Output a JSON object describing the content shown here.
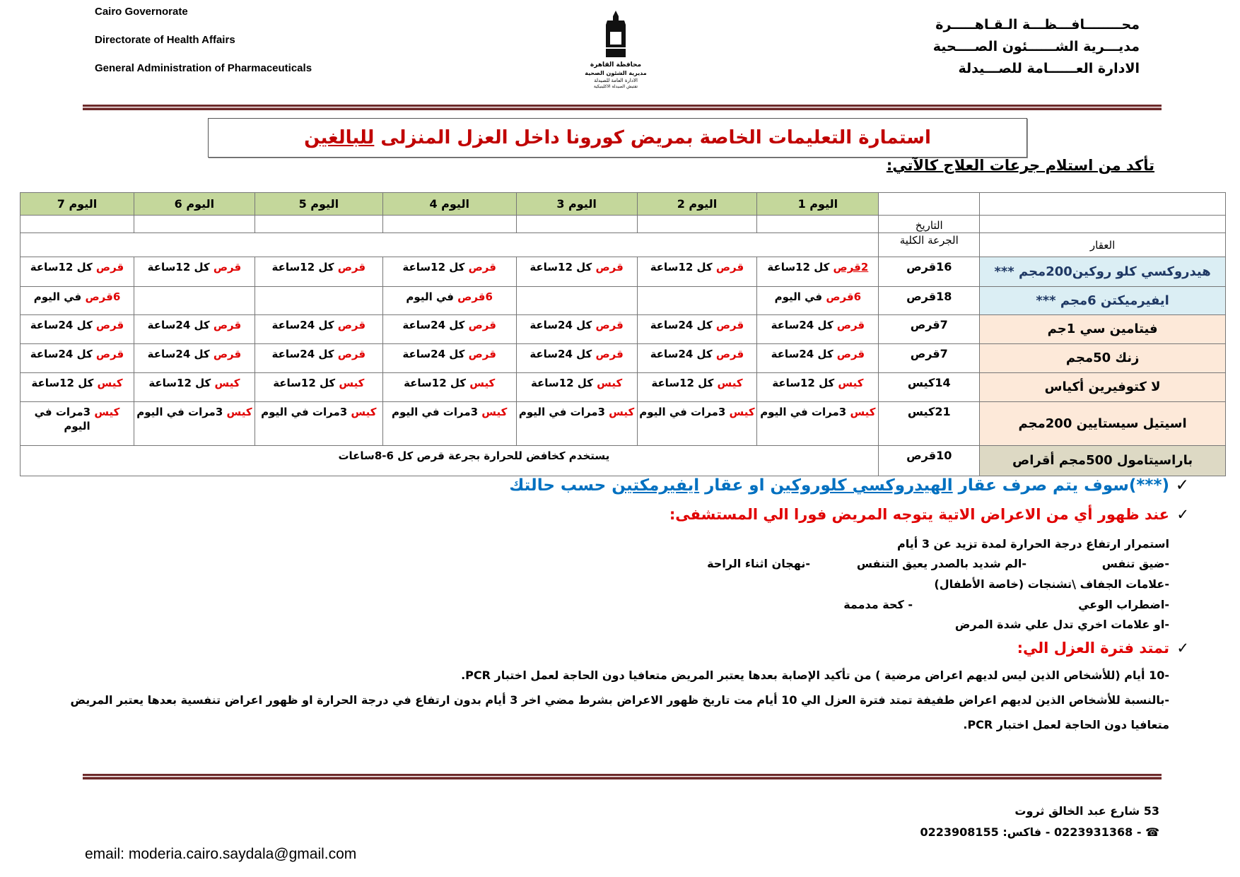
{
  "header": {
    "en": [
      "Cairo Governorate",
      "Directorate of Health Affairs",
      "General Administration of Pharmaceuticals"
    ],
    "ar": [
      "محــــــــافـــظـــة الـقـاهـــــرة",
      "مديـــرية الشــــــئون الصــــحية",
      "الادارة العــــــامة للصـــيدلة"
    ],
    "logo_text": [
      "محافظة القاهرة",
      "مديرية الشئون الصحية",
      "الادارة العامة للصيدلة",
      "تفتيش الصيدلة الاكلينيكية"
    ]
  },
  "title": {
    "main": "استمارة التعليمات الخاصة بمريض كورونا داخل العزل المنزلى ",
    "underlined": "للبالغين"
  },
  "subtitle": "تأكد من استلام جرعات العلاج كالآتي:",
  "table": {
    "days": [
      "اليوم 1",
      "اليوم 2",
      "اليوم 3",
      "اليوم 4",
      "اليوم 5",
      "اليوم 6",
      "اليوم 7"
    ],
    "date_label": "التاريخ",
    "drug_label": "العقار",
    "total_label": "الجرعة الكلية",
    "rows": [
      {
        "drug": "هيدروكسي كلو روكين200مجم ***",
        "total": "16قرص",
        "bg": "#dbeef4",
        "doses": [
          {
            "red": "2قرص",
            "black": " كل 12ساعة",
            "u": true
          },
          {
            "red": "قرص",
            "black": " كل 12ساعة"
          },
          {
            "red": "قرص",
            "black": " كل 12ساعة"
          },
          {
            "red": "قرص",
            "black": " كل 12ساعة"
          },
          {
            "red": "قرص",
            "black": " كل 12ساعة"
          },
          {
            "red": "قرص",
            "black": " كل 12ساعة"
          },
          {
            "red": "قرص",
            "black": " كل 12ساعة"
          }
        ]
      },
      {
        "drug": "ايفيرميكتن 6مجم  ***",
        "total": "18قرص",
        "bg": "#dbeef4",
        "doses": [
          {
            "red": "6قرص",
            "black": " في اليوم"
          },
          {
            "red": "",
            "black": ""
          },
          {
            "red": "",
            "black": ""
          },
          {
            "red": "6قرص",
            "black": " في اليوم"
          },
          {
            "red": "",
            "black": ""
          },
          {
            "red": "",
            "black": ""
          },
          {
            "red": "6قرص",
            "black": " في اليوم"
          }
        ]
      },
      {
        "drug": "فيتامين سي 1جم",
        "total": "7قرص",
        "bg": "#fde9d9",
        "doses": [
          {
            "red": "قرص",
            "black": " كل 24ساعة"
          },
          {
            "red": "قرص",
            "black": " كل 24ساعة"
          },
          {
            "red": "قرص",
            "black": " كل 24ساعة"
          },
          {
            "red": "قرص",
            "black": " كل 24ساعة"
          },
          {
            "red": "قرص",
            "black": " كل 24ساعة"
          },
          {
            "red": "قرص",
            "black": " كل 24ساعة"
          },
          {
            "red": "قرص",
            "black": " كل 24ساعة"
          }
        ]
      },
      {
        "drug": "زنك 50مجم",
        "total": "7قرص",
        "bg": "#fde9d9",
        "doses": [
          {
            "red": "قرص",
            "black": " كل 24ساعة"
          },
          {
            "red": "قرص",
            "black": " كل 24ساعة"
          },
          {
            "red": "قرص",
            "black": " كل 24ساعة"
          },
          {
            "red": "قرص",
            "black": " كل 24ساعة"
          },
          {
            "red": "قرص",
            "black": " كل 24ساعة"
          },
          {
            "red": "قرص",
            "black": " كل 24ساعة"
          },
          {
            "red": "قرص",
            "black": " كل 24ساعة"
          }
        ]
      },
      {
        "drug": "لا كتوفيرين أكياس",
        "total": "14كيس",
        "bg": "#fde9d9",
        "doses": [
          {
            "red": "كيس",
            "black": " كل 12ساعة"
          },
          {
            "red": "كيس",
            "black": " كل 12ساعة"
          },
          {
            "red": "كيس",
            "black": " كل 12ساعة"
          },
          {
            "red": "كيس",
            "black": " كل 12ساعة"
          },
          {
            "red": "كيس",
            "black": " كل 12ساعة"
          },
          {
            "red": "كيس",
            "black": " كل 12ساعة"
          },
          {
            "red": "كيس",
            "black": " كل 12ساعة"
          }
        ]
      },
      {
        "drug": "اسيتيل سيستايين 200مجم",
        "total": "21كيس",
        "bg": "#fde9d9",
        "doses": [
          {
            "red": "كيس",
            "black": " 3مرات في اليوم"
          },
          {
            "red": "كيس",
            "black": " 3مرات في اليوم"
          },
          {
            "red": "كيس",
            "black": " 3مرات في اليوم"
          },
          {
            "red": "كيس",
            "black": " 3مرات في اليوم"
          },
          {
            "red": "كيس",
            "black": " 3مرات في اليوم"
          },
          {
            "red": "كيس",
            "black": " 3مرات في اليوم"
          },
          {
            "red": "كيس",
            "black": " 3مرات في اليوم"
          }
        ]
      }
    ],
    "last_row": {
      "drug": "باراسيتامول 500مجم أقراص",
      "total": "10قرص",
      "note": "يستخدم كخافض للحرارة بجرعة قرص كل 6-8ساعات"
    }
  },
  "notes": {
    "line1": {
      "a": "(***)سوف يتم صرف عقار ",
      "b": "الهيدروكسي كلوروكين",
      "c": " او عقار ",
      "d": "ايفيرمكتين",
      "e": " حسب حالتك"
    },
    "line2": "عند ظهور أي من الاعراض الاتية يتوجه المريض فورا الي المستشفى:",
    "symptoms": {
      "s1": "استمرار ارتفاع درجة الحرارة لمدة تزيد عن 3 أيام",
      "s2a": "-ضيق تنفس",
      "s2b": "-الم شديد بالصدر يعيق التنفس",
      "s2c": "-نهجان اثناء الراحة",
      "s3": "-علامات الجفاف \\تشنجات (خاصة الأطفال)",
      "s4a": "-اضطراب الوعي",
      "s4b": "- كحة مدممة",
      "s5": "-او علامات اخري تدل علي شدة المرض"
    },
    "line3": "تمتد فترة العزل الي:",
    "p1": "-10 أيام (للأشخاص الذين ليس لديهم اعراض مرضية ) من تأكيد الإصابة بعدها يعتبر المريض متعافيا دون الحاجة لعمل اختبار PCR.",
    "p2": "-بالنسبة للأشخاص الذين لديهم اعراض طفيفة تمتد فترة العزل الي 10 أيام مت تاريخ ظهور الاعراض بشرط مضي اخر 3 أيام بدون ارتفاع في درجة الحرارة او ظهور اعراض تنفسية بعدها يعتبر المريض",
    "p3": "متعافيا دون الحاجة لعمل اختبار PCR.",
    "check": "✓"
  },
  "footer": {
    "address": "53  شارع عبد الخالق ثروت",
    "phone": "- 0223931368 - فاكس: 0223908155",
    "phone_icon": "telephone-icon",
    "email": "email: moderia.cairo.saydala@gmail.com"
  },
  "colors": {
    "title_red": "#c00000",
    "red": "#e00000",
    "blue": "#0070c0",
    "day_header": "#c4d79b",
    "rule": "#6d2a2a"
  }
}
